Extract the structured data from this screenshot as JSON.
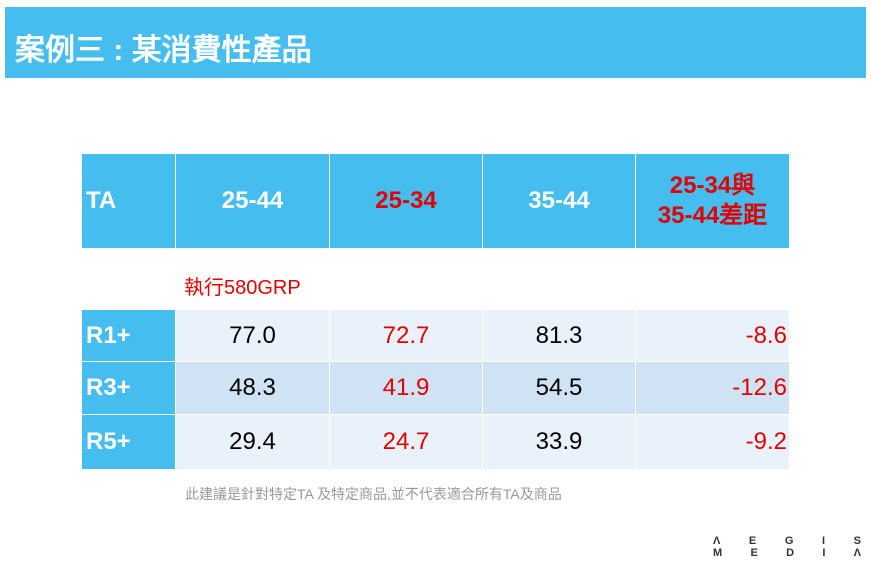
{
  "header": {
    "title": "案例三 : 某消費性產品"
  },
  "table": {
    "columns": [
      "TA",
      "25-44",
      "25-34",
      "35-44",
      [
        "25-34與",
        "35-44差距"
      ]
    ],
    "note": "執行580GRP",
    "rows": [
      [
        "R1+",
        "77.0",
        "72.7",
        "81.3",
        "-8.6"
      ],
      [
        "R3+",
        "48.3",
        "41.9",
        "54.5",
        "-12.6"
      ],
      [
        "R5+",
        "29.4",
        "24.7",
        "33.9",
        "-9.2"
      ]
    ]
  },
  "footnote": "此建議是針對特定TA 及特定商品,並不代表適合所有TA及商品",
  "logo": [
    [
      "Λ",
      "E",
      "G",
      "I",
      "S"
    ],
    [
      "M",
      "E",
      "D",
      "I",
      "Λ"
    ]
  ]
}
